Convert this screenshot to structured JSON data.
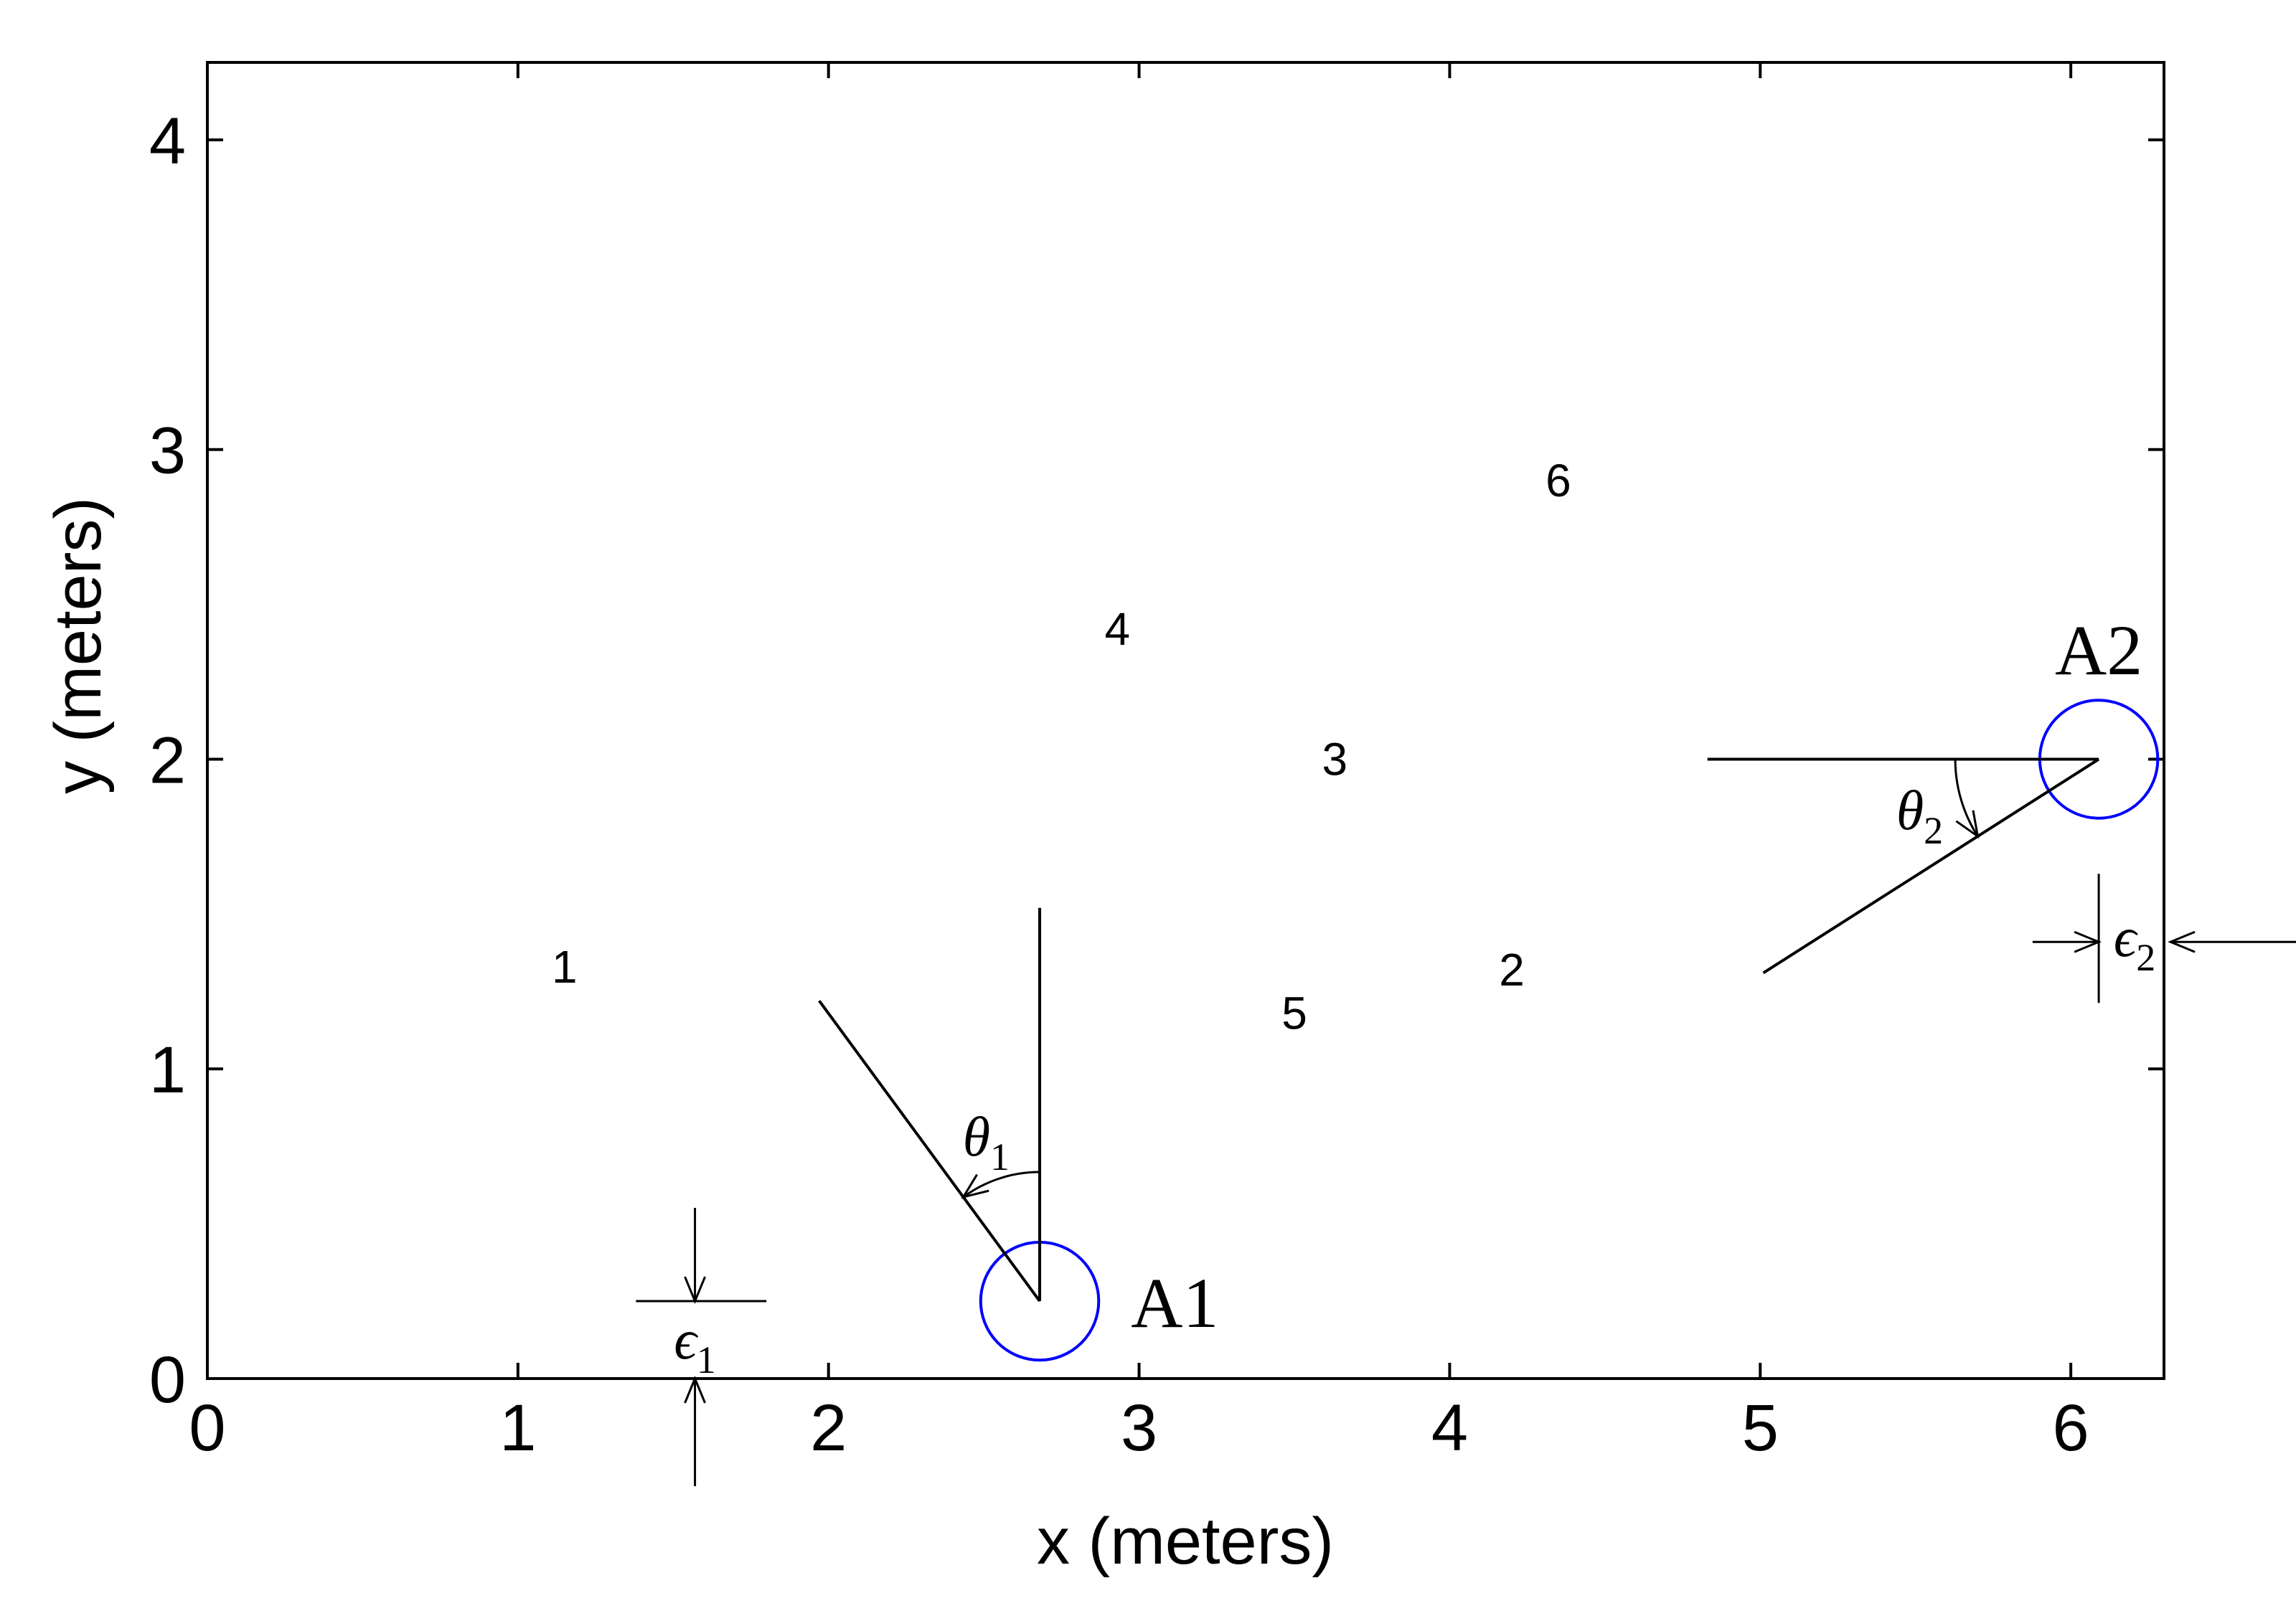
{
  "chart_data": {
    "type": "scatter",
    "title": "",
    "xlabel": "x (meters)",
    "ylabel": "y (meters)",
    "xlim": [
      0,
      6.3
    ],
    "ylim": [
      0,
      4.25
    ],
    "x_ticks": [
      "0",
      "1",
      "2",
      "3",
      "4",
      "5",
      "6"
    ],
    "y_ticks": [
      "0",
      "1",
      "2",
      "3",
      "4"
    ],
    "grid": false,
    "points": [
      {
        "label": "1",
        "x": 1.15,
        "y": 1.33
      },
      {
        "label": "2",
        "x": 4.2,
        "y": 1.32
      },
      {
        "label": "3",
        "x": 3.63,
        "y": 2.0
      },
      {
        "label": "4",
        "x": 2.93,
        "y": 2.42
      },
      {
        "label": "5",
        "x": 3.5,
        "y": 1.18
      },
      {
        "label": "6",
        "x": 4.35,
        "y": 2.9
      }
    ],
    "anchors": [
      {
        "label": "A1",
        "x": 2.68,
        "y": 0.25,
        "radius": 0.19,
        "color": "#0000ff",
        "reference_end": {
          "x": 2.68,
          "y": 1.52
        },
        "ray_end": {
          "x": 1.97,
          "y": 1.22
        },
        "angle_label": "θ",
        "angle_sub": "1"
      },
      {
        "label": "A2",
        "x": 6.09,
        "y": 2.0,
        "radius": 0.19,
        "color": "#0000ff",
        "reference_end": {
          "x": 4.83,
          "y": 2.0
        },
        "ray_end": {
          "x": 5.01,
          "y": 1.31
        },
        "angle_label": "θ",
        "angle_sub": "2"
      }
    ],
    "errors": [
      {
        "label": "ϵ",
        "sub": "1",
        "orientation": "vertical",
        "x": 1.57,
        "y": 0.25,
        "x_from": 1.38,
        "x_to": 1.8
      },
      {
        "label": "ϵ",
        "sub": "2",
        "orientation": "horizontal",
        "x": 6.09,
        "y": 1.41,
        "x_from": 5.9,
        "x_to": 6.28
      }
    ]
  }
}
